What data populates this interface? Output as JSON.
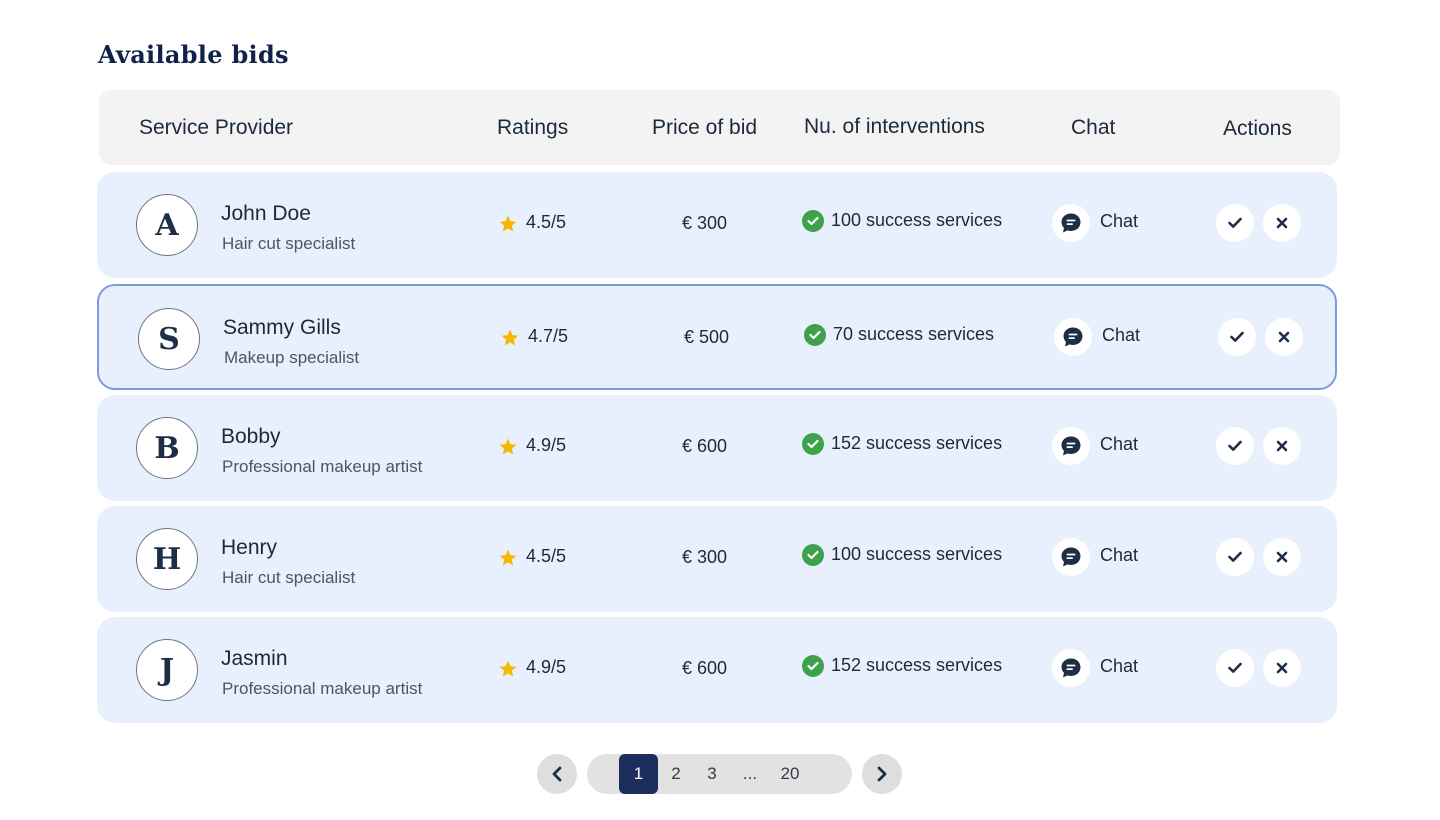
{
  "title": "Available bids",
  "columns": {
    "provider": "Service Provider",
    "ratings": "Ratings",
    "price": "Price of bid",
    "interventions": "Nu. of interventions",
    "chat": "Chat",
    "actions": "Actions"
  },
  "bids": [
    {
      "initial": "A",
      "name": "John Doe",
      "role": "Hair cut specialist",
      "rating": "4.5/5",
      "price": "€ 300",
      "interventions": "100 success services",
      "chat_label": "Chat",
      "selected": false
    },
    {
      "initial": "S",
      "name": "Sammy Gills",
      "role": "Makeup specialist",
      "rating": "4.7/5",
      "price": "€ 500",
      "interventions": "70 success services",
      "chat_label": "Chat",
      "selected": true
    },
    {
      "initial": "B",
      "name": "Bobby",
      "role": "Professional makeup artist",
      "rating": "4.9/5",
      "price": "€ 600",
      "interventions": "152 success services",
      "chat_label": "Chat",
      "selected": false
    },
    {
      "initial": "H",
      "name": "Henry",
      "role": "Hair cut specialist",
      "rating": "4.5/5",
      "price": "€ 300",
      "interventions": "100 success services",
      "chat_label": "Chat",
      "selected": false
    },
    {
      "initial": "J",
      "name": "Jasmin",
      "role": "Professional makeup artist",
      "rating": "4.9/5",
      "price": "€ 600",
      "interventions": "152 success services",
      "chat_label": "Chat",
      "selected": false
    }
  ],
  "pagination": {
    "pages": [
      "1",
      "2",
      "3",
      "...",
      "20"
    ],
    "current": "1"
  },
  "icons": {
    "rating": "star-icon",
    "interventions": "check-circle-icon",
    "chat": "chat-bubble-icon",
    "accept": "checkmark-icon",
    "reject": "close-icon",
    "prev": "chevron-left-icon",
    "next": "chevron-right-icon"
  },
  "colors": {
    "title": "#10224a",
    "row_background": "#e9f0fd",
    "selected_border": "#7d9ae0",
    "star": "#f5b800",
    "success": "#3ea24a",
    "icon_dark": "#1d2e45",
    "page_active": "#1e2e5c"
  }
}
